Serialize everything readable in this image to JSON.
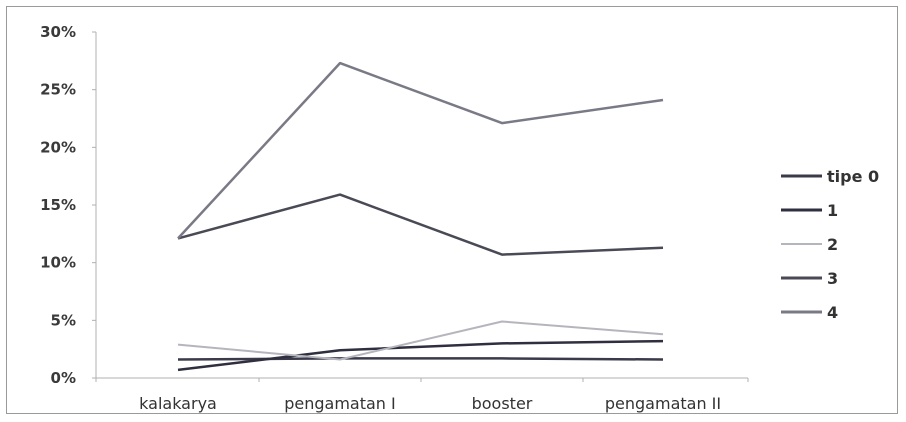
{
  "chart_data": {
    "type": "line",
    "categories": [
      "kalakarya",
      "pengamatan I",
      "booster",
      "pengamatan II"
    ],
    "y_tick_labels": [
      "0%",
      "5%",
      "10%",
      "15%",
      "20%",
      "25%",
      "30%"
    ],
    "ylim": [
      0,
      30
    ],
    "y_unit": "%",
    "grid": false,
    "legend_position": "right",
    "series": [
      {
        "name": "tipe 0",
        "values": [
          1.6,
          1.7,
          1.7,
          1.6
        ],
        "color": "#3a3a4a"
      },
      {
        "name": "1",
        "values": [
          0.7,
          2.4,
          3.0,
          3.2
        ],
        "color": "#2f2f3f"
      },
      {
        "name": "2",
        "values": [
          2.9,
          1.6,
          4.9,
          3.8
        ],
        "color": "#b5b5be"
      },
      {
        "name": "3",
        "values": [
          12.1,
          15.9,
          10.7,
          11.3
        ],
        "color": "#4a4a56"
      },
      {
        "name": "4",
        "values": [
          12.1,
          27.3,
          22.1,
          24.1
        ],
        "color": "#7a7a86"
      }
    ]
  }
}
